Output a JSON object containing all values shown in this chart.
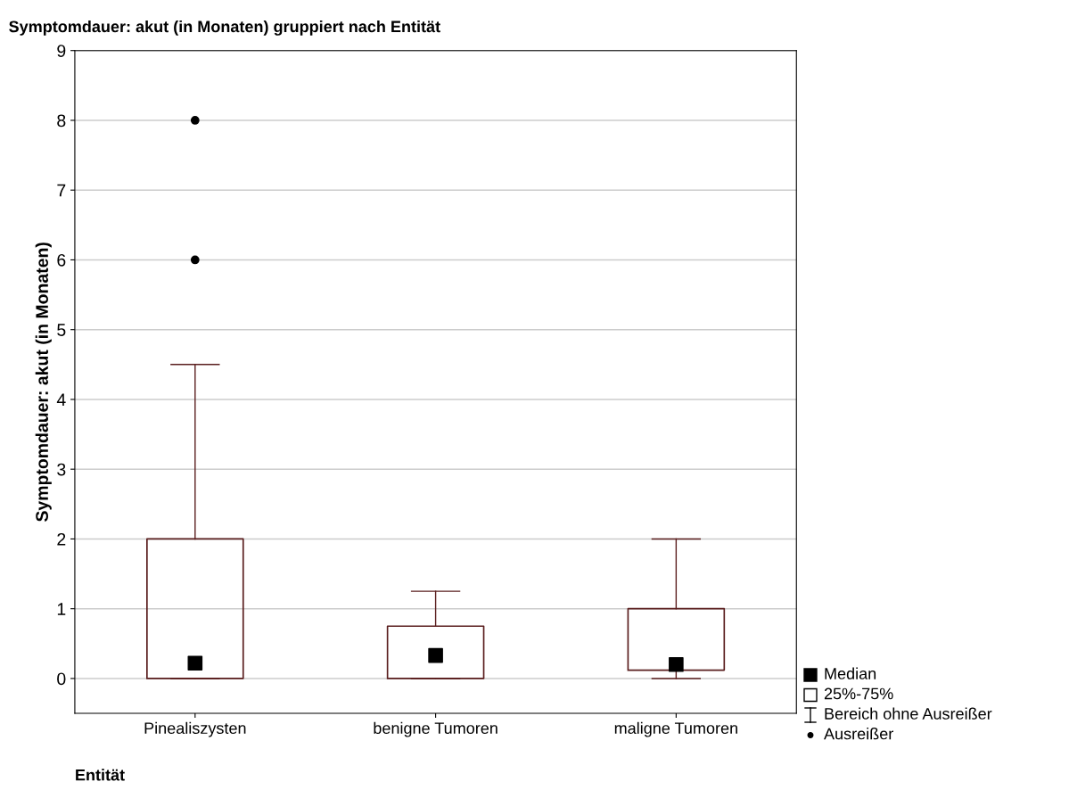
{
  "chart_data": {
    "type": "box",
    "title": "Symptomdauer: akut (in Monaten) gruppiert nach Entität",
    "xlabel": "Entität",
    "ylabel": "Symptomdauer: akut (in Monaten)",
    "categories": [
      "Pinealiszysten",
      "benigne Tumoren",
      "maligne Tumoren"
    ],
    "series": [
      {
        "color": "#5a1e1e",
        "boxes": [
          {
            "low": 0,
            "q1": 0,
            "median": 0.22,
            "q3": 2,
            "high": 4.5,
            "outliers": [
              6,
              8
            ]
          },
          {
            "low": 0,
            "q1": 0,
            "median": 0.33,
            "q3": 0.75,
            "high": 1.25
          },
          {
            "low": 0,
            "q1": 0.12,
            "median": 0.2,
            "q3": 1,
            "high": 2
          }
        ]
      }
    ],
    "ylim": [
      -0.5,
      9
    ],
    "yticks": [
      0,
      1,
      2,
      3,
      4,
      5,
      6,
      7,
      8,
      9
    ],
    "grid": "y",
    "annotations": [
      "Median",
      "25%-75%",
      "Bereich ohne Ausreißer",
      "Ausreißer"
    ]
  }
}
